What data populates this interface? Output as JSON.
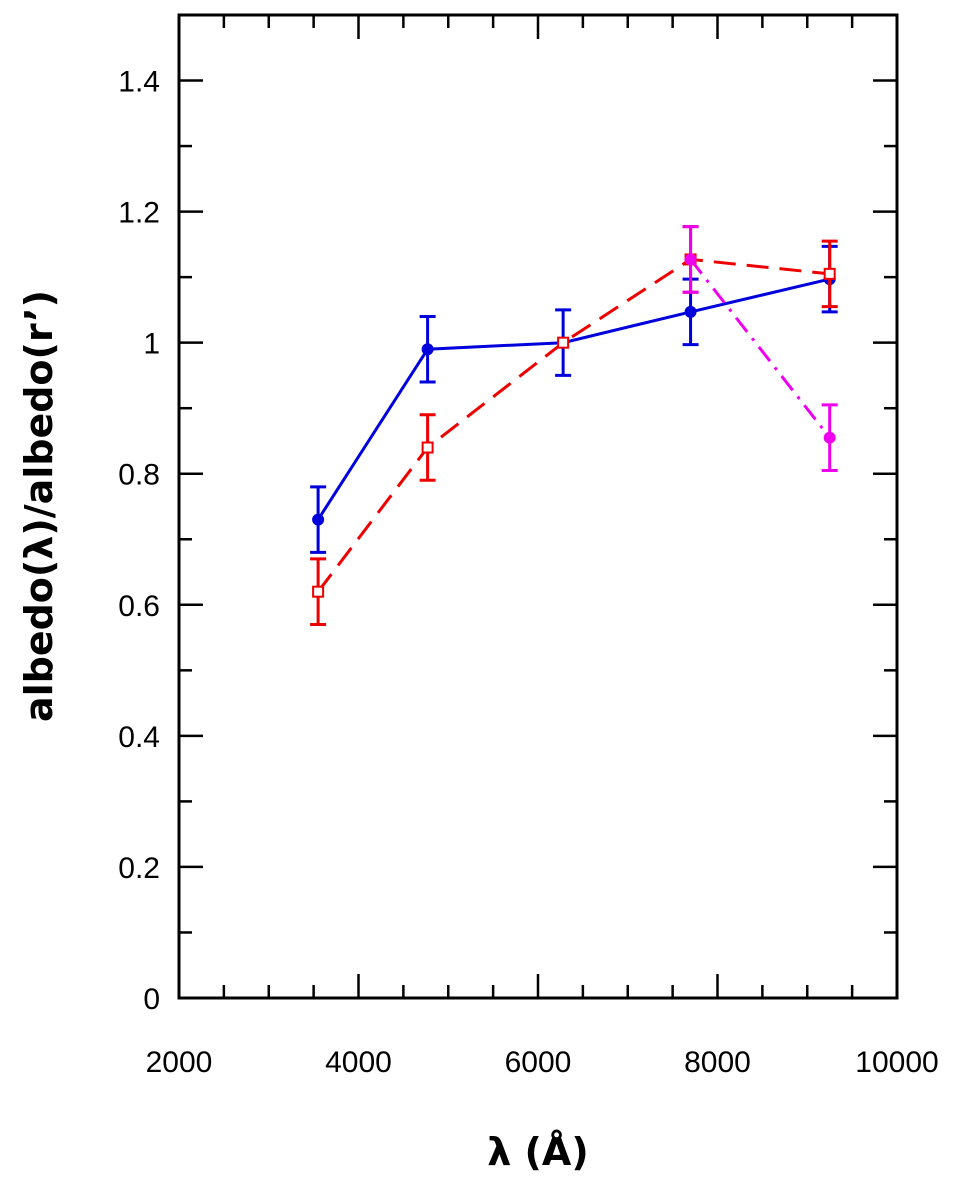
{
  "chart_data": {
    "type": "line",
    "title": "",
    "xlabel": "λ   (Å)",
    "ylabel": "albedo(λ)/albedo(r’)",
    "xlim": [
      2000,
      10000
    ],
    "ylim": [
      0,
      1.5
    ],
    "x_ticks": [
      "2000",
      "4000",
      "6000",
      "8000",
      "10000"
    ],
    "y_ticks": [
      "0",
      "0.2",
      "0.4",
      "0.6",
      "0.8",
      "1",
      "1.2",
      "1.4"
    ],
    "x_tick_values": [
      2000,
      4000,
      6000,
      8000,
      10000
    ],
    "y_tick_values": [
      0,
      0.2,
      0.4,
      0.6,
      0.8,
      1.0,
      1.2,
      1.4
    ],
    "grid": false,
    "series": [
      {
        "color": "#0000dd",
        "line_style": "solid",
        "marker": "filled-circle",
        "x": [
          3550,
          4770,
          6280,
          7700,
          9250
        ],
        "y": [
          0.73,
          0.99,
          1.0,
          1.047,
          1.097
        ],
        "err": [
          0.05,
          0.05,
          0.05,
          0.05,
          0.05
        ]
      },
      {
        "color": "#ee0000",
        "line_style": "dashed",
        "marker": "open-square",
        "x": [
          3550,
          4770,
          6280,
          7700,
          9250
        ],
        "y": [
          0.62,
          0.84,
          1.0,
          1.127,
          1.105
        ],
        "err": [
          0.05,
          0.05,
          0.0,
          0.05,
          0.05
        ]
      },
      {
        "color": "#ee00ee",
        "line_style": "dash-dot",
        "marker": "filled-circle",
        "x": [
          7700,
          9250
        ],
        "y": [
          1.127,
          0.855
        ],
        "err": [
          0.05,
          0.05
        ]
      }
    ]
  }
}
